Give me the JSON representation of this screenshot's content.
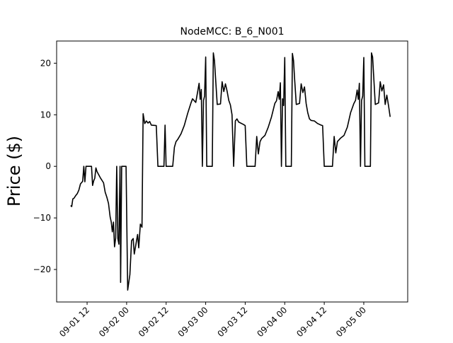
{
  "chart_data": {
    "type": "line",
    "title": "NodeMCC: B_6_N001",
    "xlabel": "",
    "ylabel": "Price ($)",
    "x_axis_type": "datetime",
    "x_tick_labels": [
      "09-01 12",
      "09-02 00",
      "09-02 12",
      "09-03 00",
      "09-03 12",
      "09-04 00",
      "09-04 12",
      "09-05 00"
    ],
    "x_tick_values": [
      "2020-09-01 12:00",
      "2020-09-02 00:00",
      "2020-09-02 12:00",
      "2020-09-03 00:00",
      "2020-09-03 12:00",
      "2020-09-04 00:00",
      "2020-09-04 12:00",
      "2020-09-05 00:00"
    ],
    "y_ticks": [
      -20,
      -10,
      0,
      10,
      20
    ],
    "y_tick_labels": [
      "−20",
      "−10",
      "0",
      "10",
      "20"
    ],
    "xlim": [
      "2020-09-01 02:45",
      "2020-09-05 13:20"
    ],
    "ylim": [
      -26.3,
      24.3
    ],
    "grid": false,
    "legend": "none",
    "line_color": "#000000",
    "series": [
      {
        "points": [
          [
            "2020-09-01 07:00",
            -7.6
          ],
          [
            "2020-09-01 07:20",
            -7.8
          ],
          [
            "2020-09-01 07:40",
            -6.3
          ],
          [
            "2020-09-01 08:00",
            -6.2
          ],
          [
            "2020-09-01 08:30",
            -5.7
          ],
          [
            "2020-09-01 09:00",
            -5.3
          ],
          [
            "2020-09-01 09:30",
            -4.6
          ],
          [
            "2020-09-01 10:00",
            -3.4
          ],
          [
            "2020-09-01 10:40",
            -2.9
          ],
          [
            "2020-09-01 11:00",
            0.0
          ],
          [
            "2020-09-01 11:20",
            -3.0
          ],
          [
            "2020-09-01 11:40",
            0.0
          ],
          [
            "2020-09-01 13:20",
            0.0
          ],
          [
            "2020-09-01 13:40",
            -3.7
          ],
          [
            "2020-09-01 14:00",
            -2.8
          ],
          [
            "2020-09-01 14:20",
            -2.3
          ],
          [
            "2020-09-01 14:40",
            -0.3
          ],
          [
            "2020-09-01 15:00",
            -1.0
          ],
          [
            "2020-09-01 16:00",
            -2.2
          ],
          [
            "2020-09-01 17:00",
            -3.2
          ],
          [
            "2020-09-01 17:30",
            -5.0
          ],
          [
            "2020-09-01 18:00",
            -6.0
          ],
          [
            "2020-09-01 18:30",
            -7.2
          ],
          [
            "2020-09-01 19:00",
            -9.8
          ],
          [
            "2020-09-01 19:20",
            -10.8
          ],
          [
            "2020-09-01 19:40",
            -12.7
          ],
          [
            "2020-09-01 20:00",
            -10.8
          ],
          [
            "2020-09-01 20:20",
            -15.6
          ],
          [
            "2020-09-01 20:40",
            -13.9
          ],
          [
            "2020-09-01 21:00",
            0.0
          ],
          [
            "2020-09-01 21:20",
            -14.0
          ],
          [
            "2020-09-01 21:40",
            -15.1
          ],
          [
            "2020-09-01 22:00",
            0.0
          ],
          [
            "2020-09-01 22:10",
            -22.5
          ],
          [
            "2020-09-01 22:30",
            0.0
          ],
          [
            "2020-09-01 23:50",
            0.0
          ],
          [
            "2020-09-02 00:20",
            -24.0
          ],
          [
            "2020-09-02 01:00",
            -21.0
          ],
          [
            "2020-09-02 01:30",
            -14.4
          ],
          [
            "2020-09-02 02:00",
            -14.0
          ],
          [
            "2020-09-02 02:20",
            -17.0
          ],
          [
            "2020-09-02 03:00",
            -14.4
          ],
          [
            "2020-09-02 03:20",
            -13.2
          ],
          [
            "2020-09-02 03:40",
            -15.8
          ],
          [
            "2020-09-02 04:10",
            -11.2
          ],
          [
            "2020-09-02 04:40",
            -11.8
          ],
          [
            "2020-09-02 05:00",
            10.2
          ],
          [
            "2020-09-02 05:30",
            8.3
          ],
          [
            "2020-09-02 06:00",
            8.8
          ],
          [
            "2020-09-02 06:30",
            8.4
          ],
          [
            "2020-09-02 07:00",
            8.7
          ],
          [
            "2020-09-02 07:30",
            8.0
          ],
          [
            "2020-09-02 09:00",
            7.9
          ],
          [
            "2020-09-02 09:30",
            0.0
          ],
          [
            "2020-09-02 11:20",
            0.0
          ],
          [
            "2020-09-02 11:40",
            8.0
          ],
          [
            "2020-09-02 12:00",
            0.0
          ],
          [
            "2020-09-02 14:00",
            0.0
          ],
          [
            "2020-09-02 14:30",
            3.7
          ],
          [
            "2020-09-02 15:00",
            4.8
          ],
          [
            "2020-09-02 15:30",
            5.2
          ],
          [
            "2020-09-02 16:30",
            6.3
          ],
          [
            "2020-09-02 17:30",
            7.9
          ],
          [
            "2020-09-02 18:30",
            10.2
          ],
          [
            "2020-09-02 19:30",
            12.2
          ],
          [
            "2020-09-02 20:00",
            13.1
          ],
          [
            "2020-09-02 21:00",
            12.4
          ],
          [
            "2020-09-02 21:30",
            14.2
          ],
          [
            "2020-09-02 22:00",
            16.1
          ],
          [
            "2020-09-02 22:20",
            13.0
          ],
          [
            "2020-09-02 22:40",
            14.9
          ],
          [
            "2020-09-02 23:00",
            0.0
          ],
          [
            "2020-09-02 23:20",
            12.8
          ],
          [
            "2020-09-02 23:40",
            13.6
          ],
          [
            "2020-09-03 00:00",
            21.2
          ],
          [
            "2020-09-03 00:20",
            0.0
          ],
          [
            "2020-09-03 02:00",
            0.0
          ],
          [
            "2020-09-03 02:20",
            22.0
          ],
          [
            "2020-09-03 02:40",
            20.5
          ],
          [
            "2020-09-03 03:00",
            17.2
          ],
          [
            "2020-09-03 03:30",
            12.0
          ],
          [
            "2020-09-03 04:30",
            12.1
          ],
          [
            "2020-09-03 05:00",
            16.4
          ],
          [
            "2020-09-03 05:30",
            14.5
          ],
          [
            "2020-09-03 06:00",
            16.0
          ],
          [
            "2020-09-03 06:30",
            14.6
          ],
          [
            "2020-09-03 07:00",
            12.8
          ],
          [
            "2020-09-03 07:30",
            11.9
          ],
          [
            "2020-09-03 08:00",
            10.0
          ],
          [
            "2020-09-03 08:30",
            0.0
          ],
          [
            "2020-09-03 09:00",
            8.8
          ],
          [
            "2020-09-03 09:30",
            9.2
          ],
          [
            "2020-09-03 10:00",
            8.6
          ],
          [
            "2020-09-03 11:30",
            8.1
          ],
          [
            "2020-09-03 12:00",
            7.9
          ],
          [
            "2020-09-03 12:30",
            0.0
          ],
          [
            "2020-09-03 15:00",
            0.0
          ],
          [
            "2020-09-03 15:30",
            5.8
          ],
          [
            "2020-09-03 16:00",
            2.4
          ],
          [
            "2020-09-03 16:30",
            4.8
          ],
          [
            "2020-09-03 17:00",
            5.4
          ],
          [
            "2020-09-03 18:00",
            6.0
          ],
          [
            "2020-09-03 19:00",
            7.6
          ],
          [
            "2020-09-03 20:00",
            9.6
          ],
          [
            "2020-09-03 21:00",
            12.2
          ],
          [
            "2020-09-03 21:30",
            12.7
          ],
          [
            "2020-09-03 22:00",
            14.5
          ],
          [
            "2020-09-03 22:20",
            13.0
          ],
          [
            "2020-09-03 22:40",
            16.2
          ],
          [
            "2020-09-03 23:00",
            0.0
          ],
          [
            "2020-09-03 23:20",
            13.1
          ],
          [
            "2020-09-03 23:40",
            11.8
          ],
          [
            "2020-09-04 00:00",
            21.1
          ],
          [
            "2020-09-04 00:20",
            0.0
          ],
          [
            "2020-09-04 02:00",
            0.0
          ],
          [
            "2020-09-04 02:20",
            21.9
          ],
          [
            "2020-09-04 02:40",
            20.5
          ],
          [
            "2020-09-04 03:00",
            17.0
          ],
          [
            "2020-09-04 03:30",
            12.0
          ],
          [
            "2020-09-04 04:30",
            12.2
          ],
          [
            "2020-09-04 05:00",
            16.0
          ],
          [
            "2020-09-04 05:30",
            14.3
          ],
          [
            "2020-09-04 06:00",
            15.4
          ],
          [
            "2020-09-04 06:30",
            12.2
          ],
          [
            "2020-09-04 07:00",
            10.4
          ],
          [
            "2020-09-04 07:30",
            9.2
          ],
          [
            "2020-09-04 08:00",
            8.9
          ],
          [
            "2020-09-04 09:00",
            8.8
          ],
          [
            "2020-09-04 10:00",
            8.3
          ],
          [
            "2020-09-04 11:00",
            8.0
          ],
          [
            "2020-09-04 11:30",
            7.9
          ],
          [
            "2020-09-04 12:00",
            0.0
          ],
          [
            "2020-09-04 14:30",
            0.0
          ],
          [
            "2020-09-04 15:00",
            5.8
          ],
          [
            "2020-09-04 15:30",
            2.6
          ],
          [
            "2020-09-04 16:00",
            4.8
          ],
          [
            "2020-09-04 17:00",
            5.5
          ],
          [
            "2020-09-04 18:00",
            6.0
          ],
          [
            "2020-09-04 19:00",
            7.6
          ],
          [
            "2020-09-04 20:00",
            10.4
          ],
          [
            "2020-09-04 21:00",
            12.2
          ],
          [
            "2020-09-04 21:30",
            12.8
          ],
          [
            "2020-09-04 22:00",
            14.8
          ],
          [
            "2020-09-04 22:20",
            13.0
          ],
          [
            "2020-09-04 22:40",
            16.1
          ],
          [
            "2020-09-04 23:00",
            0.0
          ],
          [
            "2020-09-04 23:20",
            12.8
          ],
          [
            "2020-09-04 23:40",
            13.6
          ],
          [
            "2020-09-05 00:00",
            21.1
          ],
          [
            "2020-09-05 00:20",
            0.0
          ],
          [
            "2020-09-05 02:00",
            0.0
          ],
          [
            "2020-09-05 02:20",
            22.0
          ],
          [
            "2020-09-05 02:40",
            21.2
          ],
          [
            "2020-09-05 03:00",
            17.6
          ],
          [
            "2020-09-05 03:30",
            12.0
          ],
          [
            "2020-09-05 04:30",
            12.3
          ],
          [
            "2020-09-05 05:00",
            16.4
          ],
          [
            "2020-09-05 05:30",
            14.6
          ],
          [
            "2020-09-05 06:00",
            15.8
          ],
          [
            "2020-09-05 06:30",
            12.0
          ],
          [
            "2020-09-05 07:00",
            13.8
          ],
          [
            "2020-09-05 07:30",
            11.8
          ],
          [
            "2020-09-05 08:00",
            9.6
          ]
        ]
      }
    ]
  }
}
